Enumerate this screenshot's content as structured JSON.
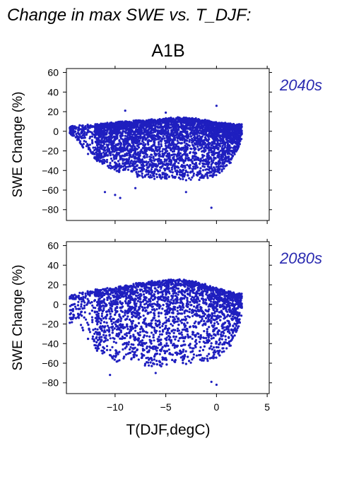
{
  "title": "Change in max SWE vs. T_DJF:",
  "scenario": "A1B",
  "colors": {
    "points": "#1f1fbf",
    "axis": "#000000",
    "period_label": "#2a2ab0"
  },
  "chart_data": [
    {
      "type": "scatter",
      "panel_label": "2040s",
      "ylabel": "SWE Change (%)",
      "xlim": [
        -14.8,
        5.2
      ],
      "ylim": [
        -91,
        64
      ],
      "yticks": [
        60,
        40,
        20,
        0,
        -20,
        -40,
        -60,
        -80
      ],
      "ytick_labels": [
        "60",
        "40",
        "20",
        "0",
        "−20",
        "−40",
        "−60",
        "−80"
      ],
      "xticks": [
        -10,
        -5,
        0,
        5
      ],
      "grid": false,
      "points_note": "dense cloud of several thousand points",
      "envelope": {
        "x_range": [
          -14.5,
          2.5
        ],
        "upper_edge": [
          [
            -14.5,
            4
          ],
          [
            -12,
            6
          ],
          [
            -9,
            9
          ],
          [
            -6,
            11
          ],
          [
            -4,
            13
          ],
          [
            -2,
            12
          ],
          [
            0,
            8
          ],
          [
            2,
            6
          ]
        ],
        "dense_lower": [
          [
            -14.5,
            -2
          ],
          [
            -13,
            -20
          ],
          [
            -12,
            -28
          ],
          [
            -10,
            -40
          ],
          [
            -8,
            -45
          ],
          [
            -6,
            -48
          ],
          [
            -4,
            -50
          ],
          [
            -2,
            -50
          ],
          [
            0,
            -45
          ],
          [
            1.5,
            -30
          ],
          [
            2.5,
            -10
          ]
        ],
        "outliers": [
          [
            -11,
            -62
          ],
          [
            -10,
            -65
          ],
          [
            -9.5,
            -68
          ],
          [
            -8,
            -58
          ],
          [
            -3,
            -62
          ],
          [
            -0.5,
            -78
          ],
          [
            0,
            26
          ],
          [
            -9,
            21
          ],
          [
            -5,
            19
          ]
        ]
      }
    },
    {
      "type": "scatter",
      "panel_label": "2080s",
      "ylabel": "SWE Change (%)",
      "xlabel": "T(DJF,degC)",
      "xlim": [
        -14.8,
        5.2
      ],
      "ylim": [
        -91,
        64
      ],
      "yticks": [
        60,
        40,
        20,
        0,
        -20,
        -40,
        -60,
        -80
      ],
      "ytick_labels": [
        "60",
        "40",
        "20",
        "0",
        "−20",
        "−40",
        "−60",
        "−80"
      ],
      "xticks": [
        -10,
        -5,
        0,
        5
      ],
      "xtick_labels": [
        "−10",
        "−5",
        "0",
        "5"
      ],
      "grid": false,
      "points_note": "dense cloud of several thousand points",
      "envelope": {
        "x_range": [
          -14.5,
          2.5
        ],
        "upper_edge": [
          [
            -14.5,
            8
          ],
          [
            -12,
            14
          ],
          [
            -10,
            16
          ],
          [
            -8,
            20
          ],
          [
            -6,
            23
          ],
          [
            -4,
            25
          ],
          [
            -2,
            22
          ],
          [
            0,
            16
          ],
          [
            2,
            10
          ]
        ],
        "dense_lower": [
          [
            -14,
            -20
          ],
          [
            -13,
            -30
          ],
          [
            -12,
            -45
          ],
          [
            -10,
            -58
          ],
          [
            -8,
            -62
          ],
          [
            -6,
            -64
          ],
          [
            -4,
            -62
          ],
          [
            -2,
            -60
          ],
          [
            0,
            -55
          ],
          [
            1.5,
            -40
          ],
          [
            2.5,
            -15
          ]
        ],
        "outliers": [
          [
            -10.5,
            -72
          ],
          [
            -6,
            -70
          ],
          [
            0,
            -82
          ],
          [
            -0.5,
            -79
          ],
          [
            -14.3,
            9
          ],
          [
            -13.5,
            5
          ]
        ]
      }
    }
  ]
}
